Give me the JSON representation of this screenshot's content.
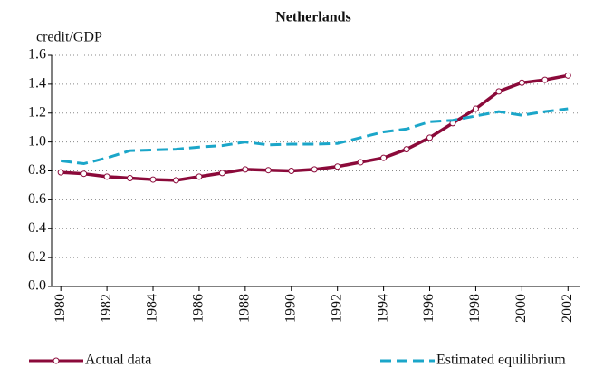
{
  "chart_data": {
    "type": "line",
    "title": "Netherlands",
    "y_label": "credit/GDP",
    "x": [
      1980,
      1981,
      1982,
      1983,
      1984,
      1985,
      1986,
      1987,
      1988,
      1989,
      1990,
      1991,
      1992,
      1993,
      1994,
      1995,
      1996,
      1997,
      1998,
      1999,
      2000,
      2001,
      2002
    ],
    "series": [
      {
        "name": "Actual data",
        "color": "#8b0a3a",
        "style": "solid",
        "marker": true,
        "values": [
          0.79,
          0.78,
          0.76,
          0.75,
          0.74,
          0.735,
          0.76,
          0.785,
          0.81,
          0.805,
          0.8,
          0.81,
          0.83,
          0.86,
          0.89,
          0.95,
          1.03,
          1.13,
          1.23,
          1.35,
          1.41,
          1.43,
          1.46
        ]
      },
      {
        "name": "Estimated equilibrium",
        "color": "#1ba6c9",
        "style": "dashed",
        "marker": false,
        "values": [
          0.87,
          0.85,
          0.89,
          0.94,
          0.945,
          0.95,
          0.965,
          0.975,
          1.0,
          0.98,
          0.985,
          0.985,
          0.99,
          1.03,
          1.07,
          1.09,
          1.14,
          1.15,
          1.18,
          1.21,
          1.185,
          1.21,
          1.23
        ]
      }
    ],
    "xlim": [
      1979.6,
      2002.5
    ],
    "xticks": [
      1980,
      1982,
      1984,
      1986,
      1988,
      1990,
      1992,
      1994,
      1996,
      1998,
      2000,
      2002
    ],
    "ylim": [
      0,
      1.6
    ],
    "yticks": [
      {
        "value": 0,
        "label": "0.0"
      },
      0.2,
      0.4,
      0.6,
      0.8,
      {
        "value": 1,
        "label": "1.0"
      },
      1.2,
      1.4,
      1.6
    ],
    "grid": true,
    "legend": "bottom"
  }
}
